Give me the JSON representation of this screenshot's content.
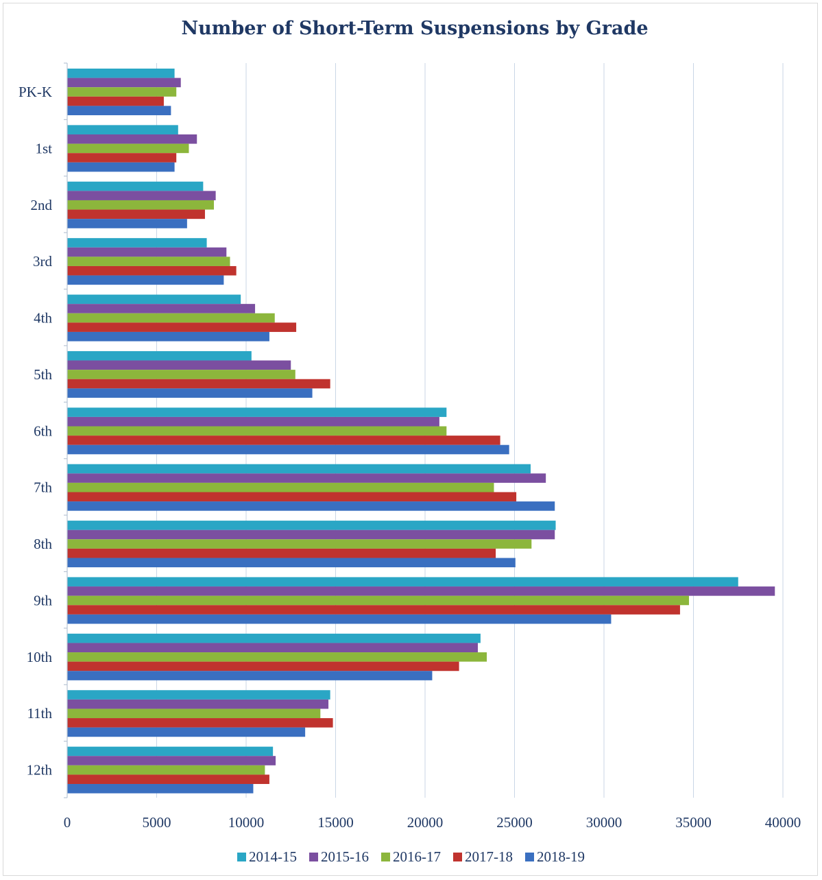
{
  "chart_data": {
    "type": "bar",
    "orientation": "horizontal",
    "title": "Number of Short-Term Suspensions by Grade",
    "xlabel": "",
    "ylabel": "",
    "xlim": [
      0,
      40000
    ],
    "x_ticks": [
      "0",
      "5000",
      "10000",
      "15000",
      "20000",
      "25000",
      "30000",
      "35000",
      "40000"
    ],
    "grid": true,
    "legend_position": "bottom",
    "categories": [
      "PK-K",
      "1st",
      "2nd",
      "3rd",
      "4th",
      "5th",
      "6th",
      "7th",
      "8th",
      "9th",
      "10th",
      "11th",
      "12th"
    ],
    "series": [
      {
        "name": "2014-15",
        "color": "#2aa6c5",
        "values": [
          6000,
          6200,
          7600,
          7800,
          9700,
          10300,
          21200,
          25900,
          27300,
          37500,
          23100,
          14700,
          11500
        ]
      },
      {
        "name": "2015-16",
        "color": "#7b4fa0",
        "values": [
          6350,
          7250,
          8300,
          8900,
          10500,
          12500,
          20800,
          26750,
          27250,
          39550,
          22950,
          14600,
          11650
        ]
      },
      {
        "name": "2016-17",
        "color": "#8cb63c",
        "values": [
          6100,
          6800,
          8200,
          9100,
          11600,
          12750,
          21200,
          23850,
          25950,
          34750,
          23450,
          14150,
          11050
        ]
      },
      {
        "name": "2017-18",
        "color": "#c0332e",
        "values": [
          5400,
          6100,
          7700,
          9450,
          12800,
          14700,
          24200,
          25100,
          23950,
          34250,
          21900,
          14850,
          11300
        ]
      },
      {
        "name": "2018-19",
        "color": "#3a6fc0",
        "values": [
          5800,
          6000,
          6700,
          8750,
          11300,
          13700,
          24700,
          27250,
          25050,
          30400,
          20400,
          13300,
          10400
        ]
      }
    ]
  }
}
